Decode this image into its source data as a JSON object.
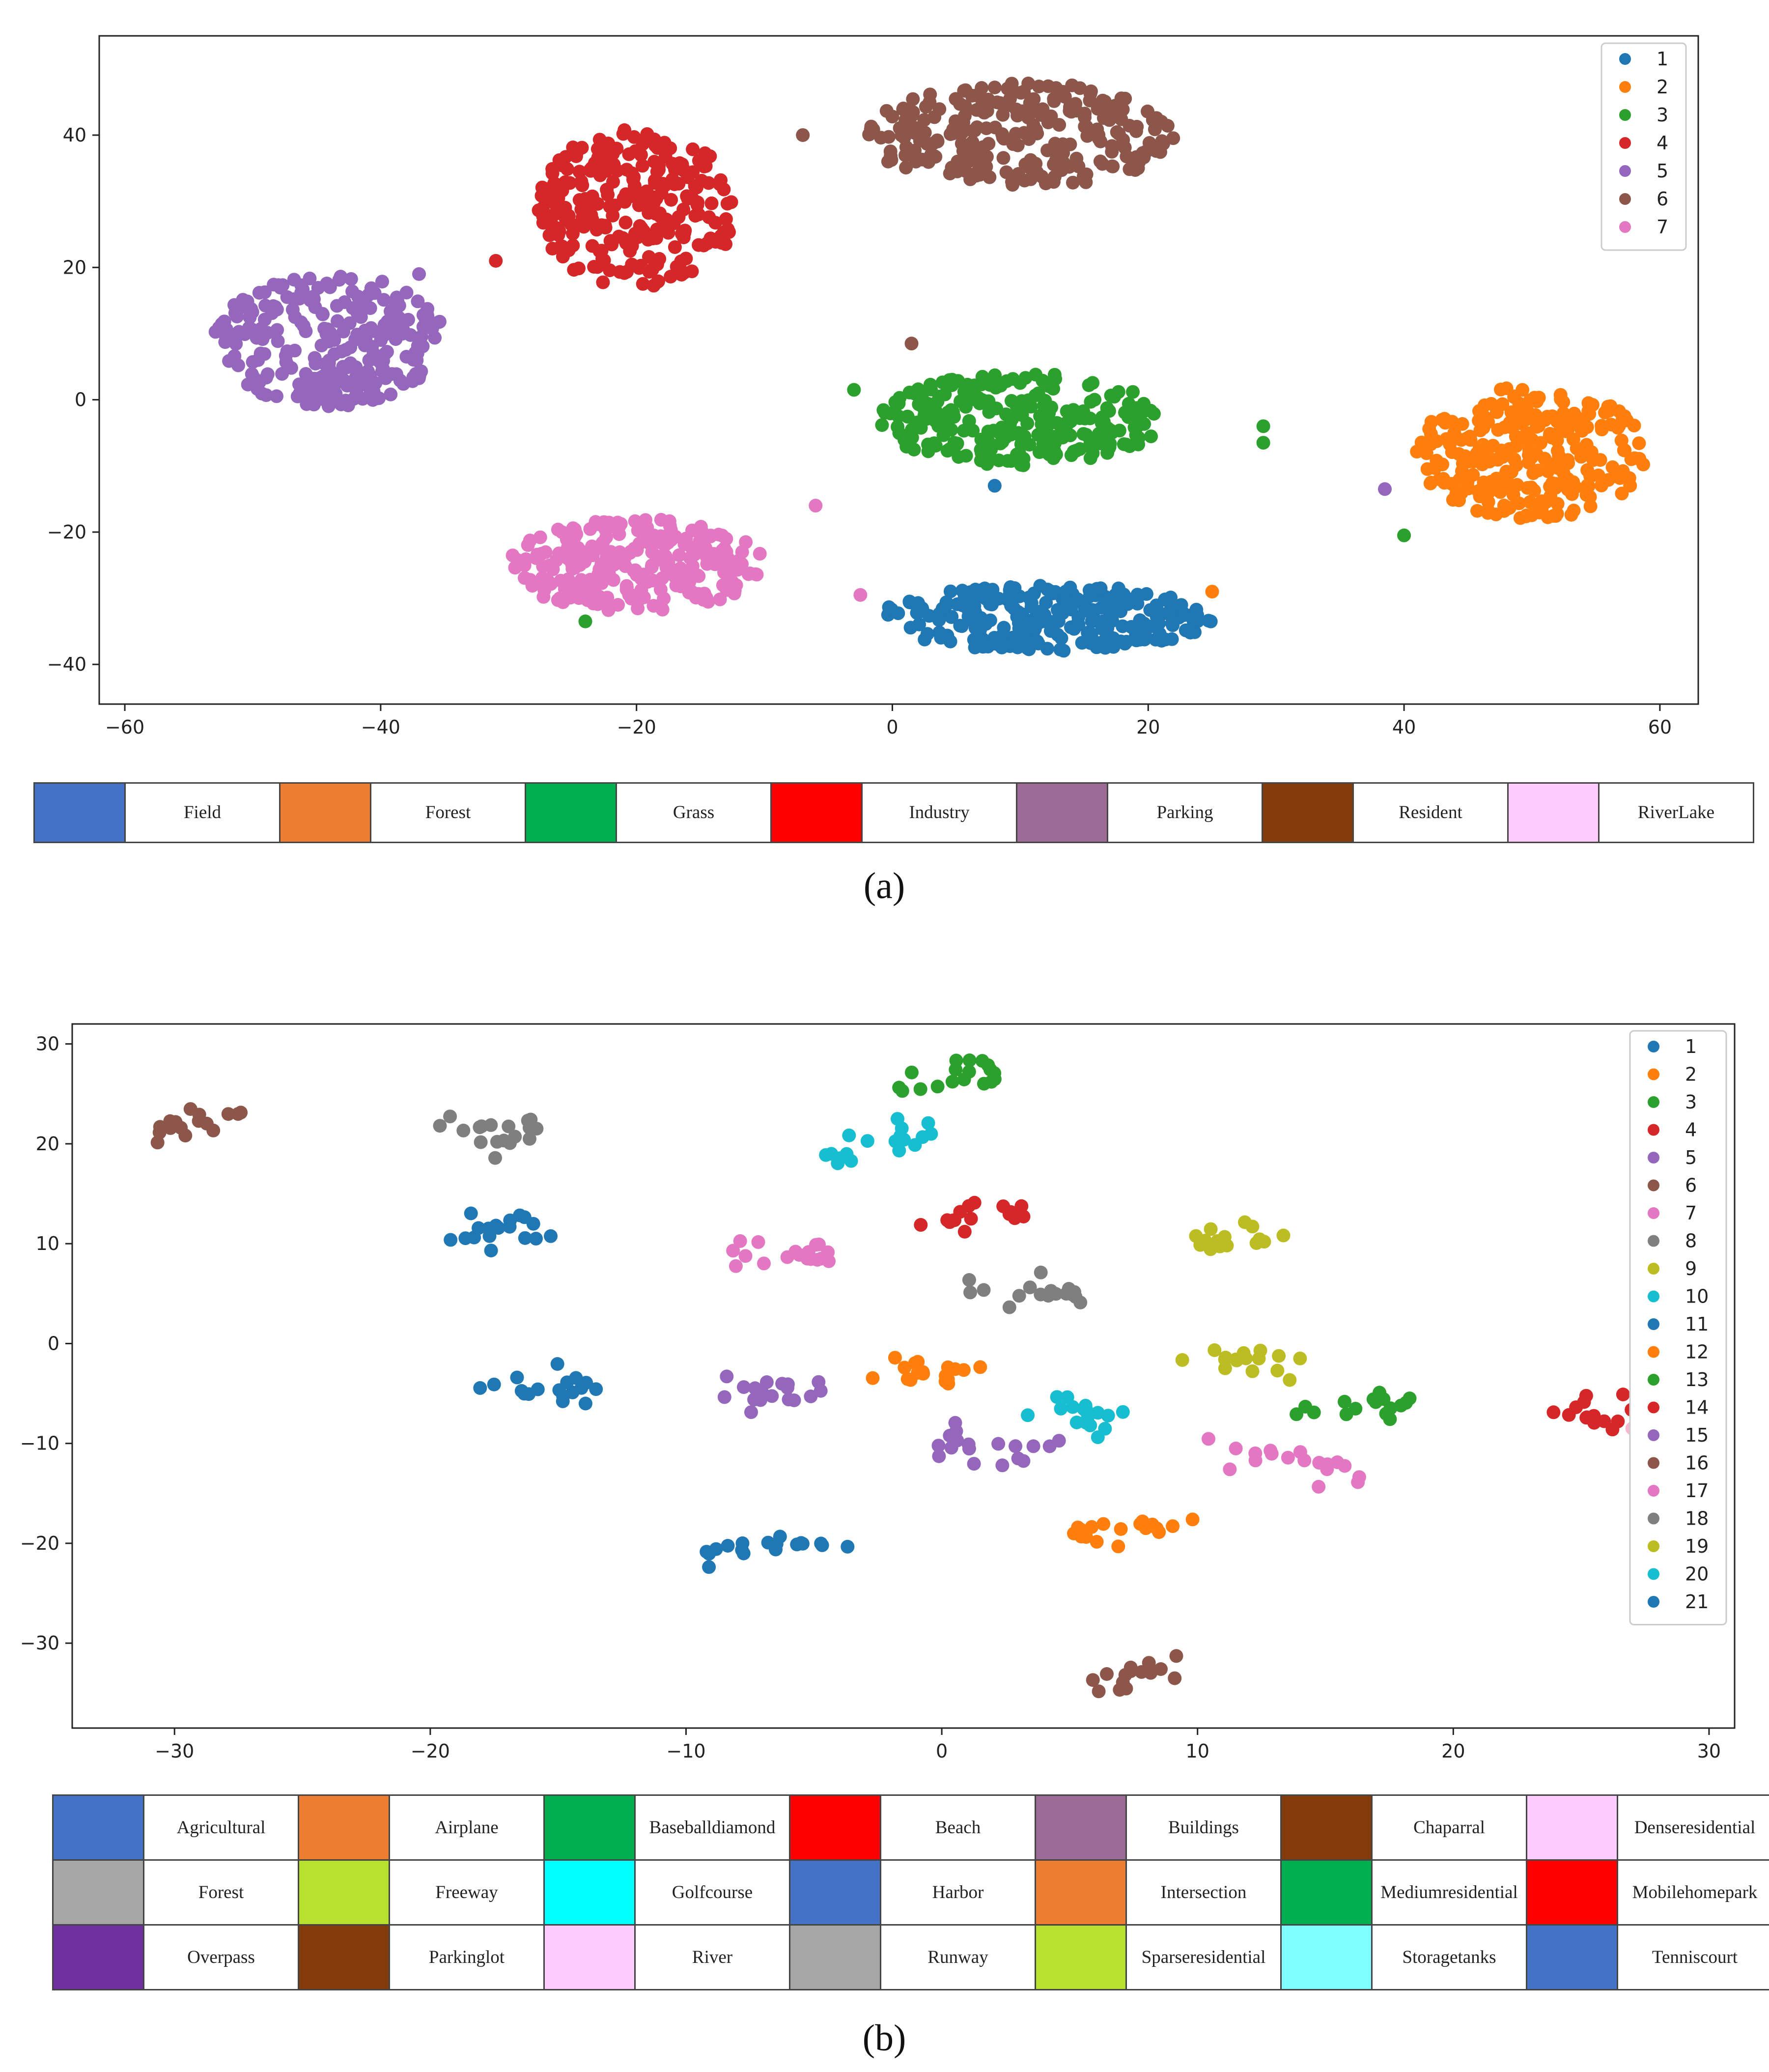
{
  "chart_data": [
    {
      "id": "a",
      "type": "scatter",
      "xlim": [
        -62,
        63
      ],
      "ylim": [
        -46,
        55
      ],
      "xticks": [
        -60,
        -40,
        -20,
        0,
        20,
        40,
        60
      ],
      "yticks": [
        -40,
        -20,
        0,
        20,
        40
      ],
      "legend_position": "top-right",
      "clusters": [
        {
          "label": "1",
          "color": "#1f77b4",
          "cx": 12,
          "cy": -33,
          "rx": 13,
          "ry": 5,
          "n": 260
        },
        {
          "label": "2",
          "color": "#ff7f0e",
          "cx": 50,
          "cy": -8,
          "rx": 9,
          "ry": 10,
          "n": 260
        },
        {
          "label": "3",
          "color": "#2ca02c",
          "cx": 10,
          "cy": -3,
          "rx": 11,
          "ry": 7,
          "n": 260
        },
        {
          "label": "4",
          "color": "#d62728",
          "cx": -20,
          "cy": 29,
          "rx": 8,
          "ry": 12,
          "n": 260
        },
        {
          "label": "5",
          "color": "#9467bd",
          "cx": -44,
          "cy": 9,
          "rx": 9,
          "ry": 10,
          "n": 260
        },
        {
          "label": "6",
          "color": "#8c564b",
          "cx": 10,
          "cy": 40,
          "rx": 12,
          "ry": 8,
          "n": 260
        },
        {
          "label": "7",
          "color": "#e377c2",
          "cx": -20,
          "cy": -25,
          "rx": 10,
          "ry": 7,
          "n": 260
        }
      ],
      "outliers": [
        {
          "x": -7,
          "y": 40,
          "c": "#8c564b"
        },
        {
          "x": -31,
          "y": 21,
          "c": "#d62728"
        },
        {
          "x": -37,
          "y": 19,
          "c": "#9467bd"
        },
        {
          "x": -3,
          "y": 1.5,
          "c": "#2ca02c"
        },
        {
          "x": 29,
          "y": -4,
          "c": "#2ca02c"
        },
        {
          "x": 29,
          "y": -6.5,
          "c": "#2ca02c"
        },
        {
          "x": 38.5,
          "y": -13.5,
          "c": "#9467bd"
        },
        {
          "x": 40,
          "y": -20.5,
          "c": "#2ca02c"
        },
        {
          "x": -6,
          "y": -16,
          "c": "#e377c2"
        },
        {
          "x": -2.5,
          "y": -29.5,
          "c": "#e377c2"
        },
        {
          "x": 25,
          "y": -29,
          "c": "#ff7f0e"
        },
        {
          "x": -24,
          "y": -33.5,
          "c": "#2ca02c"
        },
        {
          "x": 8,
          "y": -13,
          "c": "#1f77b4"
        },
        {
          "x": 1.5,
          "y": 8.5,
          "c": "#8c564b"
        }
      ],
      "legend": [
        "1",
        "2",
        "3",
        "4",
        "5",
        "6",
        "7"
      ]
    },
    {
      "id": "b",
      "type": "scatter",
      "xlim": [
        -34,
        31
      ],
      "ylim": [
        -38.5,
        32
      ],
      "xticks": [
        -30,
        -20,
        -10,
        0,
        10,
        20,
        30
      ],
      "yticks": [
        -30,
        -20,
        -10,
        0,
        10,
        20,
        30
      ],
      "legend_position": "top-right",
      "clusters": [
        {
          "label": "1",
          "color": "#1f77b4",
          "x0": -19,
          "y0": 11,
          "x1": -15.5,
          "y1": 12,
          "n": 18
        },
        {
          "label": "2",
          "color": "#ff7f0e",
          "x0": -2.5,
          "y0": -2.5,
          "x1": 1,
          "y1": -2.5,
          "n": 18
        },
        {
          "label": "3",
          "color": "#2ca02c",
          "x0": -2,
          "y0": 26,
          "x1": 2,
          "y1": 27.5,
          "n": 18
        },
        {
          "label": "4",
          "color": "#d62728",
          "x0": -1,
          "y0": 12.5,
          "x1": 3.5,
          "y1": 13,
          "n": 16
        },
        {
          "label": "5",
          "color": "#9467bd",
          "x0": -8,
          "y0": -5,
          "x1": -4.5,
          "y1": -4.5,
          "n": 18
        },
        {
          "label": "6",
          "color": "#8c564b",
          "x0": -31,
          "y0": 21,
          "x1": -27.5,
          "y1": 23.5,
          "n": 16
        },
        {
          "label": "7",
          "color": "#e377c2",
          "x0": -8.5,
          "y0": 10,
          "x1": -4.5,
          "y1": 8.5,
          "n": 18
        },
        {
          "label": "8",
          "color": "#7f7f7f",
          "x0": 1,
          "y0": 5,
          "x1": 6,
          "y1": 5,
          "n": 18
        },
        {
          "label": "9",
          "color": "#bcbd22",
          "x0": 10,
          "y0": 10.5,
          "x1": 14,
          "y1": 10.5,
          "n": 16
        },
        {
          "label": "10",
          "color": "#17becf",
          "x0": -4.5,
          "y0": 18.5,
          "x1": -0.5,
          "y1": 21.5,
          "n": 18
        },
        {
          "label": "11",
          "color": "#1f77b4",
          "x0": -17.5,
          "y0": -4,
          "x1": -13,
          "y1": -4.5,
          "n": 18
        },
        {
          "label": "12",
          "color": "#ff7f0e",
          "x0": 5,
          "y0": -19,
          "x1": 9.5,
          "y1": -18,
          "n": 18
        },
        {
          "label": "13",
          "color": "#2ca02c",
          "x0": 14,
          "y0": -7,
          "x1": 18.5,
          "y1": -5.5,
          "n": 16
        },
        {
          "label": "14",
          "color": "#d62728",
          "x0": 24,
          "y0": -7,
          "x1": 27.5,
          "y1": -7,
          "n": 14
        },
        {
          "label": "15",
          "color": "#9467bd",
          "x0": 0,
          "y0": -9.5,
          "x1": 4.5,
          "y1": -12,
          "n": 18
        },
        {
          "label": "16",
          "color": "#8c564b",
          "x0": 6,
          "y0": -34,
          "x1": 9,
          "y1": -32,
          "n": 16
        },
        {
          "label": "17",
          "color": "#e377c2",
          "x0": 11,
          "y0": -11,
          "x1": 16.5,
          "y1": -12.5,
          "n": 18
        },
        {
          "label": "18",
          "color": "#7f7f7f",
          "x0": -19.5,
          "y0": 22,
          "x1": -15.5,
          "y1": 21.5,
          "n": 18
        },
        {
          "label": "19",
          "color": "#bcbd22",
          "x0": 10,
          "y0": -1,
          "x1": 14,
          "y1": -2,
          "n": 16
        },
        {
          "label": "20",
          "color": "#17becf",
          "x0": 3,
          "y0": -6,
          "x1": 7,
          "y1": -7.5,
          "n": 18
        },
        {
          "label": "21",
          "color": "#1f77b4",
          "x0": -9,
          "y0": -21,
          "x1": -4,
          "y1": -19,
          "n": 18
        }
      ],
      "outliers": [
        {
          "x": 27.5,
          "y": -5.8,
          "c": "#f7b6d2"
        },
        {
          "x": 27,
          "y": -8.5,
          "c": "#f7b6d2"
        }
      ],
      "legend": [
        "1",
        "2",
        "3",
        "4",
        "5",
        "6",
        "7",
        "8",
        "9",
        "10",
        "11",
        "12",
        "13",
        "14",
        "15",
        "16",
        "17",
        "18",
        "19",
        "20",
        "21"
      ]
    }
  ],
  "class_table_a": [
    {
      "name": "Field",
      "color": "#4472c4"
    },
    {
      "name": "Forest",
      "color": "#ed7d31"
    },
    {
      "name": "Grass",
      "color": "#00b050"
    },
    {
      "name": "Industry",
      "color": "#ff0000"
    },
    {
      "name": "Parking",
      "color": "#9b6b95"
    },
    {
      "name": "Resident",
      "color": "#843c0c"
    },
    {
      "name": "RiverLake",
      "color": "#ffccff"
    }
  ],
  "class_table_b": [
    [
      {
        "name": "Agricultural",
        "color": "#4472c4"
      },
      {
        "name": "Airplane",
        "color": "#ed7d31"
      },
      {
        "name": "Baseballdiamond",
        "color": "#00b050"
      },
      {
        "name": "Beach",
        "color": "#ff0000"
      },
      {
        "name": "Buildings",
        "color": "#9b6b95"
      },
      {
        "name": "Chaparral",
        "color": "#843c0c"
      },
      {
        "name": "Denseresidential",
        "color": "#ffccff"
      }
    ],
    [
      {
        "name": "Forest",
        "color": "#a6a6a6"
      },
      {
        "name": "Freeway",
        "color": "#b7e12d"
      },
      {
        "name": "Golfcourse",
        "color": "#00ffff"
      },
      {
        "name": "Harbor",
        "color": "#4472c4"
      },
      {
        "name": "Intersection",
        "color": "#ed7d31"
      },
      {
        "name": "Mediumresidential",
        "color": "#00b050"
      },
      {
        "name": "Mobilehomepark",
        "color": "#ff0000"
      }
    ],
    [
      {
        "name": "Overpass",
        "color": "#7030a0"
      },
      {
        "name": "Parkinglot",
        "color": "#843c0c"
      },
      {
        "name": "River",
        "color": "#ffccff"
      },
      {
        "name": "Runway",
        "color": "#a6a6a6"
      },
      {
        "name": "Sparseresidential",
        "color": "#b7e12d"
      },
      {
        "name": "Storagetanks",
        "color": "#7fffff"
      },
      {
        "name": "Tenniscourt",
        "color": "#4472c4"
      }
    ]
  ],
  "captions": {
    "a": "(a)",
    "b": "(b)"
  }
}
